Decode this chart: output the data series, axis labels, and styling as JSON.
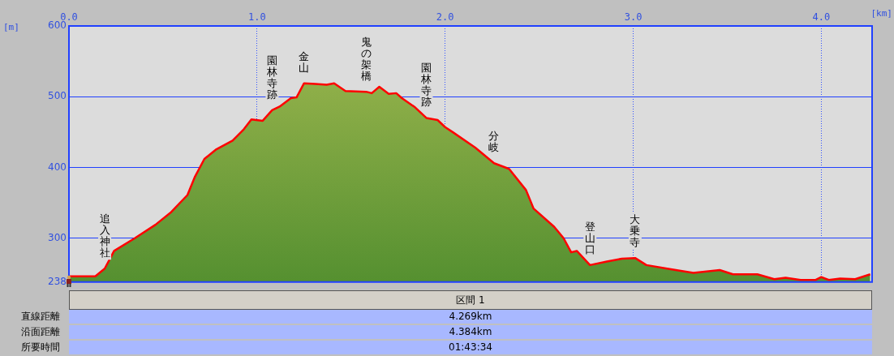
{
  "chart_data": {
    "type": "area",
    "xlabel": "[km]",
    "ylabel": "[m]",
    "xlim": [
      0,
      4.27
    ],
    "xticks": [
      {
        "value": 0,
        "label": "0.0"
      },
      {
        "value": 1,
        "label": "1.0"
      },
      {
        "value": 2,
        "label": "2.0"
      },
      {
        "value": 3,
        "label": "3.0"
      },
      {
        "value": 4,
        "label": "4.0"
      }
    ],
    "ylim": [
      238,
      600
    ],
    "yticks": [
      238,
      300,
      400,
      500,
      600
    ],
    "grid": true,
    "x": [
      0,
      0.14,
      0.19,
      0.24,
      0.35,
      0.46,
      0.54,
      0.63,
      0.67,
      0.72,
      0.78,
      0.87,
      0.93,
      0.97,
      1.03,
      1.08,
      1.12,
      1.18,
      1.21,
      1.25,
      1.31,
      1.37,
      1.41,
      1.47,
      1.58,
      1.61,
      1.65,
      1.7,
      1.74,
      1.77,
      1.84,
      1.9,
      1.96,
      2,
      2.04,
      2.16,
      2.26,
      2.34,
      2.43,
      2.47,
      2.58,
      2.63,
      2.67,
      2.7,
      2.77,
      2.86,
      2.94,
      3.01,
      3.07,
      3.2,
      3.32,
      3.46,
      3.53,
      3.66,
      3.75,
      3.81,
      3.89,
      3.97,
      4,
      4.04,
      4.1,
      4.18,
      4.26
    ],
    "series": [
      {
        "color": "#ff0000",
        "values": [
          246,
          246,
          257,
          282,
          300,
          319,
          336,
          361,
          387,
          412,
          425,
          438,
          454,
          468,
          466,
          481,
          486,
          498,
          499,
          519,
          518,
          517,
          519,
          508,
          507,
          505,
          514,
          504,
          505,
          498,
          485,
          470,
          467,
          457,
          450,
          428,
          406,
          398,
          368,
          342,
          316,
          300,
          280,
          282,
          262,
          267,
          271,
          272,
          262,
          256,
          251,
          255,
          249,
          249,
          242,
          244,
          241,
          241,
          245,
          241,
          243,
          242,
          249
        ]
      }
    ],
    "annotations": [
      {
        "text": "追入神社",
        "x": 0.19,
        "y": 257
      },
      {
        "text": "園林寺跡",
        "x": 1.08,
        "y": 481
      },
      {
        "text": "金山",
        "x": 1.25,
        "y": 519
      },
      {
        "text": "鬼の架橋",
        "x": 1.58,
        "y": 507
      },
      {
        "text": "園林寺跡",
        "x": 1.9,
        "y": 470
      },
      {
        "text": "分岐",
        "x": 2.26,
        "y": 406
      },
      {
        "text": "登山口",
        "x": 2.77,
        "y": 262
      },
      {
        "text": "大乗寺",
        "x": 3.01,
        "y": 272
      },
      "区間 1",
      "直線距離",
      "4.269km",
      "沿面距離",
      "4.384km",
      "所要時間",
      "01:43:34"
    ]
  }
}
